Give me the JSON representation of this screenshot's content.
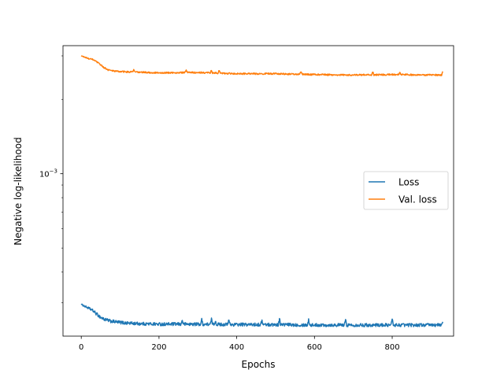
{
  "chart_data": {
    "type": "line",
    "title": "",
    "xlabel": "Epochs",
    "ylabel": "Negative log-likelihood",
    "xlim": [
      -47,
      958
    ],
    "ylim": [
      0.00022,
      0.0033
    ],
    "yscale": "log",
    "x_ticks": [
      0,
      200,
      400,
      600,
      800
    ],
    "y_ticks": [
      {
        "value": 0.001,
        "base": "10",
        "exponent": "−3"
      }
    ],
    "grid": false,
    "legend": {
      "placement": "center-right"
    },
    "x_end": 930,
    "series": [
      {
        "name": "Loss",
        "color": "#1f77b4",
        "knots": [
          [
            0,
            0.000296
          ],
          [
            10,
            0.00029
          ],
          [
            20,
            0.000285
          ],
          [
            30,
            0.000279
          ],
          [
            40,
            0.00027
          ],
          [
            50,
            0.000262
          ],
          [
            60,
            0.000257
          ],
          [
            75,
            0.000253
          ],
          [
            90,
            0.000251
          ],
          [
            110,
            0.000249
          ],
          [
            130,
            0.000248
          ],
          [
            150,
            0.000247
          ],
          [
            200,
            0.000246
          ],
          [
            300,
            0.000246
          ],
          [
            400,
            0.000245
          ],
          [
            500,
            0.000245
          ],
          [
            600,
            0.000244
          ],
          [
            700,
            0.000244
          ],
          [
            800,
            0.000244
          ],
          [
            930,
            0.000244
          ]
        ],
        "noise": 0.015,
        "spikes": [
          [
            260,
            0.000255
          ],
          [
            310,
            0.000256
          ],
          [
            335,
            0.000257
          ],
          [
            345,
            0.000254
          ],
          [
            380,
            0.000256
          ],
          [
            465,
            0.000255
          ],
          [
            510,
            0.000258
          ],
          [
            585,
            0.000256
          ],
          [
            680,
            0.000255
          ],
          [
            800,
            0.000257
          ],
          [
            930,
            0.000252
          ]
        ]
      },
      {
        "name": "Val. loss",
        "color": "#ff7f0e",
        "knots": [
          [
            0,
            0.003
          ],
          [
            10,
            0.00296
          ],
          [
            20,
            0.00292
          ],
          [
            30,
            0.0029
          ],
          [
            40,
            0.00283
          ],
          [
            50,
            0.00276
          ],
          [
            60,
            0.00268
          ],
          [
            70,
            0.00263
          ],
          [
            80,
            0.00261
          ],
          [
            100,
            0.00259
          ],
          [
            140,
            0.00258
          ],
          [
            200,
            0.00256
          ],
          [
            300,
            0.00257
          ],
          [
            400,
            0.00254
          ],
          [
            500,
            0.00254
          ],
          [
            600,
            0.00252
          ],
          [
            700,
            0.00251
          ],
          [
            800,
            0.00252
          ],
          [
            930,
            0.00251
          ]
        ],
        "noise": 0.007,
        "spikes": [
          [
            135,
            0.00263
          ],
          [
            270,
            0.00262
          ],
          [
            335,
            0.00262
          ],
          [
            355,
            0.00262
          ],
          [
            565,
            0.00259
          ],
          [
            750,
            0.00258
          ],
          [
            820,
            0.00257
          ],
          [
            930,
            0.00258
          ]
        ]
      }
    ]
  }
}
